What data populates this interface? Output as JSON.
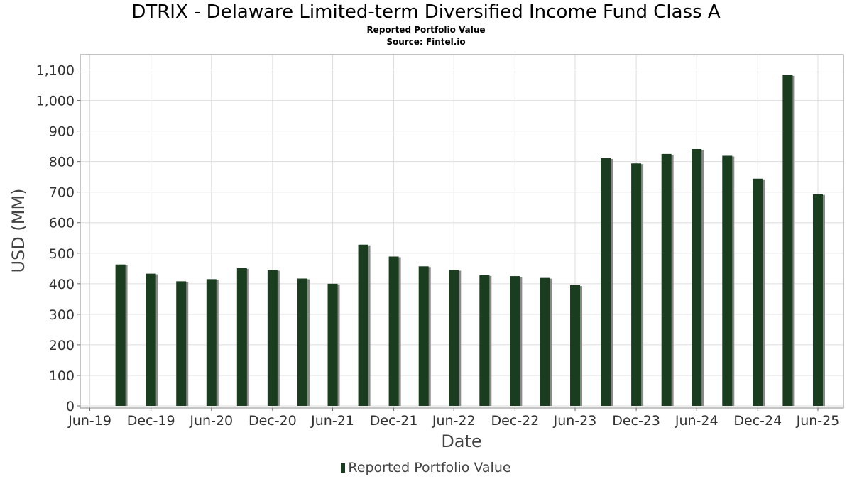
{
  "title": "DTRIX - Delaware Limited-term Diversified Income Fund Class A",
  "subtitle": "Reported Portfolio Value",
  "source": "Source: Fintel.io",
  "colors": {
    "bar": "#1a3d1f",
    "bar_shadow": "#8a8a8a",
    "grid": "#dddddd",
    "plot_border": "#888888"
  },
  "chart_data": {
    "type": "bar",
    "title": "DTRIX - Delaware Limited-term Diversified Income Fund Class A",
    "subtitle": "Reported Portfolio Value",
    "xlabel": "Date",
    "ylabel": "USD (MM)",
    "ylim": [
      0,
      1150
    ],
    "yticks": [
      0,
      100,
      200,
      300,
      400,
      500,
      600,
      700,
      800,
      900,
      1000,
      1100
    ],
    "yticklabels": [
      "0",
      "100",
      "200",
      "300",
      "400",
      "500",
      "600",
      "700",
      "800",
      "900",
      "1,000",
      "1,100"
    ],
    "xlim": [
      "2019-06-01",
      "2025-09-15"
    ],
    "xticks": [
      "2019-06-30",
      "2019-12-31",
      "2020-06-30",
      "2020-12-31",
      "2021-06-30",
      "2021-12-31",
      "2022-06-30",
      "2022-12-31",
      "2023-06-30",
      "2023-12-31",
      "2024-06-30",
      "2024-12-31",
      "2025-06-30"
    ],
    "xticklabels": [
      "Jun-19",
      "Dec-19",
      "Jun-20",
      "Dec-20",
      "Jun-21",
      "Dec-21",
      "Jun-22",
      "Dec-22",
      "Jun-23",
      "Dec-23",
      "Jun-24",
      "Dec-24",
      "Jun-25"
    ],
    "grid": true,
    "legend_position": "bottom",
    "series": [
      {
        "name": "Reported Portfolio Value",
        "x": [
          "2019-09-30",
          "2019-12-31",
          "2020-03-31",
          "2020-06-30",
          "2020-09-30",
          "2020-12-31",
          "2021-03-31",
          "2021-06-30",
          "2021-09-30",
          "2021-12-31",
          "2022-03-31",
          "2022-06-30",
          "2022-09-30",
          "2022-12-31",
          "2023-03-31",
          "2023-06-30",
          "2023-09-30",
          "2023-12-31",
          "2024-03-31",
          "2024-06-30",
          "2024-09-30",
          "2024-12-31",
          "2025-03-31",
          "2025-06-30"
        ],
        "values": [
          463,
          433,
          408,
          415,
          451,
          445,
          417,
          400,
          528,
          489,
          457,
          445,
          428,
          425,
          419,
          395,
          811,
          794,
          825,
          841,
          819,
          744,
          1083,
          693
        ]
      }
    ]
  }
}
